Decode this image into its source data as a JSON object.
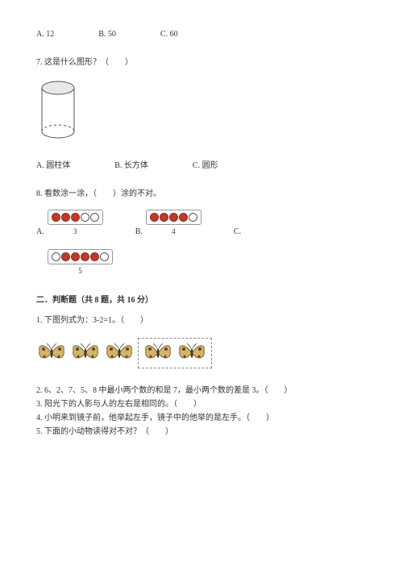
{
  "q6": {
    "optA": "A. 12",
    "optB": "B. 50",
    "optC": "C. 60"
  },
  "q7": {
    "text": "7. 这是什么图形？（　　）",
    "optA": "A. 圆柱体",
    "optB": "B. 长方体",
    "optC": "C. 圆形"
  },
  "q8": {
    "text": "8. 看数涂一涂，（　　）涂的不对。",
    "A": {
      "label": "A.",
      "dots": [
        1,
        1,
        1,
        0,
        0
      ],
      "num": "3"
    },
    "B": {
      "label": "B.",
      "dots": [
        1,
        1,
        1,
        1,
        0
      ],
      "num": "4"
    },
    "C": {
      "label": "C.",
      "dots": [
        0,
        1,
        1,
        1,
        1,
        0
      ],
      "num": "5"
    }
  },
  "sec2": "二．判断题（共 8 题，共 16 分）",
  "j1": "1. 下图列式为：3-2=1。（　　）",
  "j_list": {
    "j2": "2. 6、2、7、5、8 中最小两个数的和是 7，最小两个数的差是 3。（　　）",
    "j3": "3. 阳光下的人影与人的左右是相同的。（　　）",
    "j4": "4. 小明来到镜子前，他举起左手，镜子中的他举的是左手。（　　）",
    "j5": "5. 下面的小动物读得对不对？（　　）"
  },
  "butterfly_group": {
    "left_count": 3,
    "right_count": 2
  },
  "svg": {
    "cylinder": {
      "stroke": "#555",
      "fill": "#e8e8e8",
      "dash": "3,3"
    },
    "butterfly": {
      "wing_fill": "#d4b46a",
      "wing_stroke": "#5a4a2a",
      "spot": "#6b4226",
      "body": "#4a3820"
    }
  }
}
